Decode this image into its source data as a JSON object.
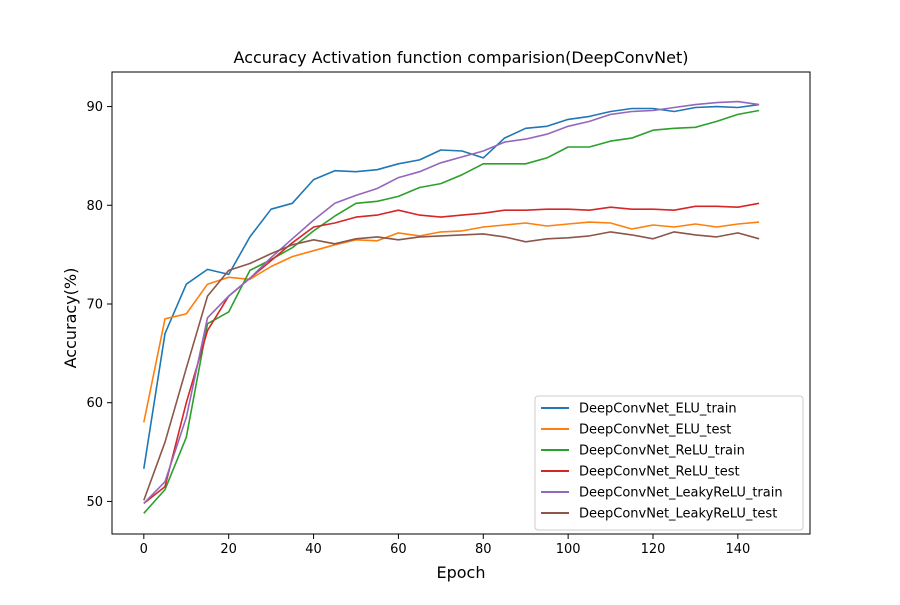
{
  "chart_data": {
    "type": "line",
    "title": "Accuracy Activation function comparision(DeepConvNet)",
    "xlabel": "Epoch",
    "ylabel": "Accuracy(%)",
    "xlim": [
      -7.5,
      157
    ],
    "ylim": [
      46.7,
      93.5
    ],
    "x_ticks": [
      0,
      20,
      40,
      60,
      80,
      100,
      120,
      140
    ],
    "y_ticks": [
      50,
      60,
      70,
      80,
      90
    ],
    "legend_position": "lower-right",
    "grid": false,
    "x_step": 5,
    "series": [
      {
        "name": "DeepConvNet_ELU_train",
        "color": "#1f77b4",
        "values": [
          53.3,
          67.0,
          72.0,
          73.5,
          73.0,
          76.8,
          79.6,
          80.2,
          82.6,
          83.5,
          83.4,
          83.6,
          84.2,
          84.6,
          85.6,
          85.5,
          84.8,
          86.8,
          87.8,
          88.0,
          88.7,
          89.0,
          89.5,
          89.8,
          89.8,
          89.5,
          89.9,
          90.0,
          89.9,
          90.2
        ]
      },
      {
        "name": "DeepConvNet_ELU_test",
        "color": "#ff7f0e",
        "values": [
          58.0,
          68.5,
          69.0,
          72.0,
          72.7,
          72.5,
          73.8,
          74.8,
          75.4,
          76.0,
          76.5,
          76.4,
          77.2,
          76.9,
          77.3,
          77.4,
          77.8,
          78.0,
          78.2,
          77.9,
          78.1,
          78.3,
          78.2,
          77.6,
          78.0,
          77.8,
          78.1,
          77.8,
          78.1,
          78.3
        ]
      },
      {
        "name": "DeepConvNet_ReLU_train",
        "color": "#2ca02c",
        "values": [
          48.8,
          51.2,
          56.5,
          68.0,
          69.2,
          73.4,
          74.5,
          75.7,
          77.4,
          78.9,
          80.2,
          80.4,
          80.9,
          81.8,
          82.2,
          83.1,
          84.2,
          84.2,
          84.2,
          84.8,
          85.9,
          85.9,
          86.5,
          86.8,
          87.6,
          87.8,
          87.9,
          88.5,
          89.2,
          89.6
        ]
      },
      {
        "name": "DeepConvNet_ReLU_test",
        "color": "#d62728",
        "values": [
          49.8,
          51.5,
          60.0,
          67.3,
          70.8,
          72.6,
          74.4,
          76.2,
          77.8,
          78.2,
          78.8,
          79.0,
          79.5,
          79.0,
          78.8,
          79.0,
          79.2,
          79.5,
          79.5,
          79.6,
          79.6,
          79.5,
          79.8,
          79.6,
          79.6,
          79.5,
          79.9,
          79.9,
          79.8,
          80.2
        ]
      },
      {
        "name": "DeepConvNet_LeakyReLU_train",
        "color": "#9467bd",
        "values": [
          49.8,
          52.0,
          58.5,
          68.6,
          70.8,
          72.6,
          74.7,
          76.6,
          78.5,
          80.2,
          81.0,
          81.7,
          82.8,
          83.4,
          84.3,
          84.9,
          85.5,
          86.4,
          86.7,
          87.2,
          88.0,
          88.5,
          89.2,
          89.5,
          89.6,
          89.9,
          90.2,
          90.4,
          90.5,
          90.2
        ]
      },
      {
        "name": "DeepConvNet_LeakyReLU_test",
        "color": "#8c564b",
        "values": [
          50.1,
          56.0,
          63.5,
          70.8,
          73.4,
          74.1,
          75.1,
          76.0,
          76.5,
          76.1,
          76.6,
          76.8,
          76.5,
          76.8,
          76.9,
          77.0,
          77.1,
          76.8,
          76.3,
          76.6,
          76.7,
          76.9,
          77.3,
          77.0,
          76.6,
          77.3,
          77.0,
          76.8,
          77.2,
          76.6
        ]
      }
    ]
  }
}
